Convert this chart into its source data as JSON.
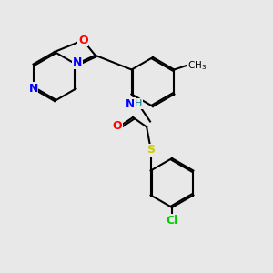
{
  "background_color": "#e8e8e8",
  "bond_color": "#000000",
  "atom_colors": {
    "N": "#0000ff",
    "O": "#ff0000",
    "S": "#cccc00",
    "Cl": "#00cc00",
    "C": "#000000",
    "H": "#008080"
  },
  "title": "",
  "figsize": [
    3.0,
    3.0
  ],
  "dpi": 100
}
